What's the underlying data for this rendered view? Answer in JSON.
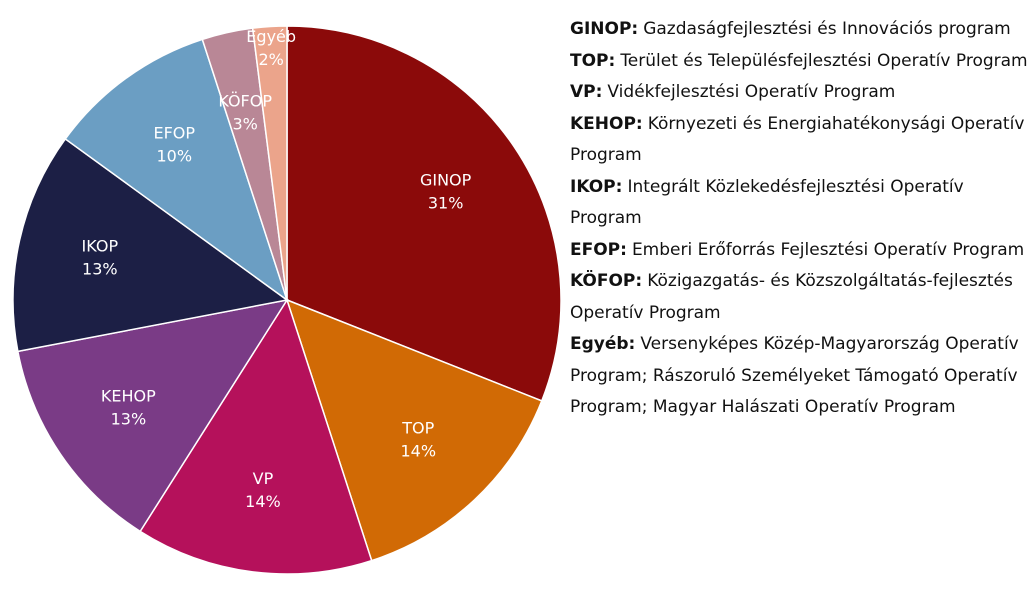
{
  "chart_data": {
    "type": "pie",
    "categories": [
      "GINOP",
      "TOP",
      "VP",
      "KEHOP",
      "IKOP",
      "EFOP",
      "KÖFOP",
      "Egyéb"
    ],
    "values": [
      31,
      14,
      14,
      13,
      13,
      10,
      3,
      2
    ],
    "value_labels": [
      "31%",
      "14%",
      "14%",
      "13%",
      "13%",
      "10%",
      "3%",
      "2%"
    ],
    "colors": [
      "#8b0a0a",
      "#d16a05",
      "#b5115b",
      "#7a3b86",
      "#1c1f45",
      "#6b9ec3",
      "#b98796",
      "#eba48b"
    ],
    "notes": [
      {
        "term": "GINOP:",
        "text": "Gazdaságfejlesztési és Innovációs program"
      },
      {
        "term": "TOP:",
        "text": "Terület és Településfejlesztési Operatív Program"
      },
      {
        "term": "VP:",
        "text": "Vidékfejlesztési Operatív Program"
      },
      {
        "term": "KEHOP:",
        "text": "Környezeti és Energiahatékonysági Operatív Program"
      },
      {
        "term": "IKOP:",
        "text": "Integrált Közlekedésfejlesztési Operatív Program"
      },
      {
        "term": "EFOP:",
        "text": "Emberi Erőforrás Fejlesztési Operatív Program"
      },
      {
        "term": "KÖFOP:",
        "text": "Közigazgatás- és Közszolgáltatás-fejlesztés Operatív Program"
      },
      {
        "term": "Egyéb:",
        "text": "Versenyképes Közép-Magyarország Operatív Program; Rászoruló Személyeket Támogató Operatív Program; Magyar Halászati Operatív Program"
      }
    ]
  }
}
